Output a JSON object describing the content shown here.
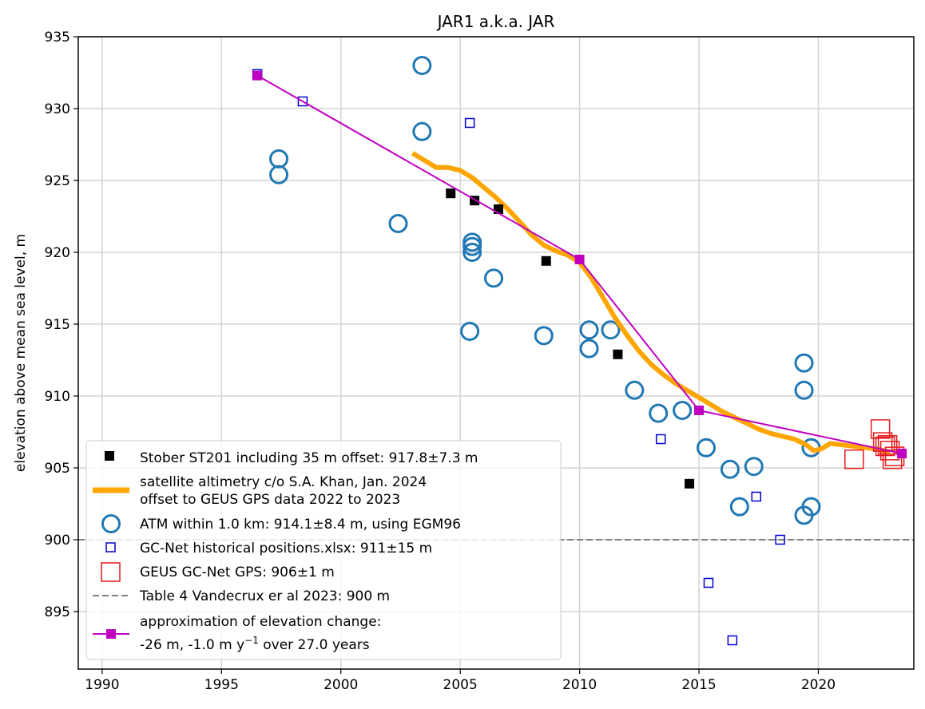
{
  "chart_data": {
    "type": "scatter",
    "title": "JAR1 a.k.a. JAR",
    "xlabel": "",
    "ylabel": "elevation above mean sea level, m",
    "xlim": [
      1989,
      2024
    ],
    "ylim": [
      891,
      935
    ],
    "xticks": [
      1990,
      1995,
      2000,
      2005,
      2010,
      2015,
      2020
    ],
    "yticks": [
      895,
      900,
      905,
      910,
      915,
      920,
      925,
      930,
      935
    ],
    "grid": true,
    "legend_position": "lower-left",
    "series": [
      {
        "name": "Stober ST201 including 35 m offset: 917.8±7.3 m",
        "marker": "filled-square",
        "color": "#000000",
        "points": [
          [
            2004.6,
            924.1
          ],
          [
            2005.6,
            923.6
          ],
          [
            2006.6,
            923.0
          ],
          [
            2008.6,
            919.4
          ],
          [
            2011.6,
            912.9
          ],
          [
            2014.6,
            903.9
          ]
        ]
      },
      {
        "name_lines": [
          "satellite altimetry c/o S.A. Khan, Jan. 2024",
          "offset to GEUS GPS data 2022 to 2023"
        ],
        "marker": "thick-line",
        "color": "#ffa500",
        "points": [
          [
            2003.0,
            926.9
          ],
          [
            2003.5,
            926.4
          ],
          [
            2004.0,
            925.9
          ],
          [
            2004.5,
            925.9
          ],
          [
            2005.0,
            925.7
          ],
          [
            2005.5,
            925.2
          ],
          [
            2006.0,
            924.5
          ],
          [
            2006.5,
            923.8
          ],
          [
            2007.0,
            923.0
          ],
          [
            2007.5,
            922.1
          ],
          [
            2008.0,
            921.2
          ],
          [
            2008.5,
            920.5
          ],
          [
            2009.0,
            920.1
          ],
          [
            2009.5,
            919.8
          ],
          [
            2010.0,
            919.3
          ],
          [
            2010.5,
            918.2
          ],
          [
            2011.0,
            916.8
          ],
          [
            2011.5,
            915.4
          ],
          [
            2012.0,
            914.2
          ],
          [
            2012.5,
            913.1
          ],
          [
            2013.0,
            912.2
          ],
          [
            2013.5,
            911.5
          ],
          [
            2014.0,
            910.9
          ],
          [
            2014.5,
            910.4
          ],
          [
            2015.0,
            909.9
          ],
          [
            2015.5,
            909.4
          ],
          [
            2016.0,
            908.9
          ],
          [
            2016.5,
            908.5
          ],
          [
            2017.0,
            908.1
          ],
          [
            2017.5,
            907.7
          ],
          [
            2018.0,
            907.4
          ],
          [
            2018.5,
            907.2
          ],
          [
            2019.0,
            907.0
          ],
          [
            2019.5,
            906.6
          ],
          [
            2019.8,
            906.2
          ],
          [
            2020.1,
            906.3
          ],
          [
            2020.5,
            906.7
          ],
          [
            2021.0,
            906.6
          ],
          [
            2021.5,
            906.5
          ],
          [
            2022.0,
            906.4
          ],
          [
            2022.5,
            906.3
          ],
          [
            2023.0,
            906.1
          ]
        ]
      },
      {
        "name": "ATM within 1.0 km: 914.1±8.4 m, using EGM96",
        "marker": "open-circle",
        "color": "#1f77b4",
        "points": [
          [
            1997.4,
            926.5
          ],
          [
            1997.4,
            925.4
          ],
          [
            2002.4,
            922.0
          ],
          [
            2003.4,
            933.0
          ],
          [
            2003.4,
            928.4
          ],
          [
            2005.5,
            920.7
          ],
          [
            2005.5,
            920.4
          ],
          [
            2005.5,
            920.0
          ],
          [
            2005.4,
            914.5
          ],
          [
            2006.4,
            918.2
          ],
          [
            2008.5,
            914.2
          ],
          [
            2010.4,
            914.6
          ],
          [
            2010.4,
            913.3
          ],
          [
            2011.3,
            914.6
          ],
          [
            2012.3,
            910.4
          ],
          [
            2013.3,
            908.8
          ],
          [
            2014.3,
            909.0
          ],
          [
            2015.3,
            906.4
          ],
          [
            2016.3,
            904.9
          ],
          [
            2016.7,
            902.3
          ],
          [
            2017.3,
            905.1
          ],
          [
            2019.4,
            912.3
          ],
          [
            2019.4,
            910.4
          ],
          [
            2019.7,
            906.4
          ],
          [
            2019.4,
            901.7
          ],
          [
            2019.7,
            902.3
          ]
        ]
      },
      {
        "name": "GC-Net historical positions.xlsx: 911±15 m",
        "marker": "open-square-small",
        "color": "#0000cd",
        "points": [
          [
            1996.5,
            932.4
          ],
          [
            1998.4,
            930.5
          ],
          [
            2005.4,
            929.0
          ],
          [
            2013.4,
            907.0
          ],
          [
            2015.4,
            897.0
          ],
          [
            2016.4,
            893.0
          ],
          [
            2017.4,
            903.0
          ],
          [
            2018.4,
            900.0
          ]
        ]
      },
      {
        "name": "GEUS GC-Net GPS: 906±1 m",
        "marker": "open-square-large",
        "color": "#e41a1c",
        "points": [
          [
            2021.5,
            905.6
          ],
          [
            2022.6,
            907.7
          ],
          [
            2022.7,
            906.8
          ],
          [
            2022.8,
            906.5
          ],
          [
            2022.9,
            906.6
          ],
          [
            2023.0,
            906.2
          ],
          [
            2023.1,
            905.6
          ],
          [
            2023.2,
            905.8
          ]
        ]
      },
      {
        "name": "Table 4 Vandecrux er al 2023: 900 m",
        "marker": "dashed-line",
        "color": "#808080",
        "y": 900
      },
      {
        "name_lines": [
          "approximation of elevation change:",
          "-26 m, -1.0 m y",
          "−1",
          " over 27.0 years"
        ],
        "marker": "line-square",
        "color": "#c000c0",
        "points": [
          [
            1996.5,
            932.3
          ],
          [
            2010.0,
            919.5
          ],
          [
            2015.0,
            909.0
          ],
          [
            2023.5,
            906.0
          ]
        ]
      }
    ]
  }
}
